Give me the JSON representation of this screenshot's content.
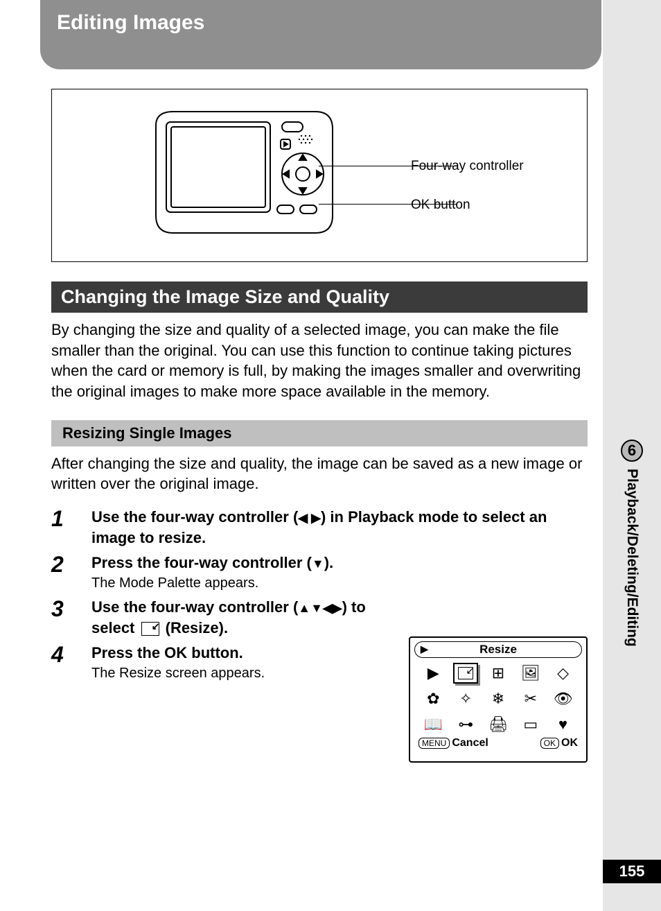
{
  "colors": {
    "page_bg": "#ffffff",
    "outer_bg": "#e6e6e6",
    "title_tab_bg": "#8f8f8f",
    "title_tab_fg": "#ffffff",
    "section_bar_bg": "#3b3b3b",
    "section_bar_fg": "#ffffff",
    "sub_bar_bg": "#bfbfbf",
    "pagenum_bg": "#000000",
    "pagenum_fg": "#ffffff"
  },
  "fonts": {
    "family": "Arial, Helvetica, sans-serif",
    "title_size_pt": 22,
    "section_size_pt": 20,
    "body_size_pt": 16,
    "subheader_size_pt": 16,
    "stepnum_size_pt": 24
  },
  "title": "Editing Images",
  "diagram": {
    "callout1": "Four-way controller",
    "callout2": "OK button"
  },
  "section_title": "Changing the Image Size and Quality",
  "section_body": "By changing the size and quality of a selected image, you can make the file smaller than the original. You can use this function to continue taking pictures when the card or memory is full, by making the images smaller and overwriting the original images to make more space available in the memory.",
  "subheader": "Resizing Single Images",
  "sub_body": "After changing the size and quality, the image can be saved as a new image or written over the original image.",
  "steps": [
    {
      "num": "1",
      "title_pre": "Use the four-way controller (",
      "title_keys": "◀ ▶",
      "title_post": ") in Playback mode to select an image to resize.",
      "sub": ""
    },
    {
      "num": "2",
      "title_pre": "Press the four-way controller (",
      "title_keys": "▼",
      "title_post": ").",
      "sub": "The Mode Palette appears."
    },
    {
      "num": "3",
      "title_pre": "Use the four-way controller (",
      "title_keys": "▲▼◀▶",
      "title_post_pre": ") to select ",
      "title_post_post": " (Resize).",
      "sub": ""
    },
    {
      "num": "4",
      "title_pre": "Press the OK button.",
      "title_keys": "",
      "title_post": "",
      "sub": "The Resize screen appears."
    }
  ],
  "palette": {
    "header": "Resize",
    "footer_cancel_label": "MENU",
    "footer_cancel_text": "Cancel",
    "footer_ok_label": "OK",
    "footer_ok_text": "OK",
    "icons": [
      "▶",
      "⧉",
      "⊞",
      "🖼",
      "◇",
      "✿",
      "✧",
      "❄",
      "✂",
      "👁",
      "📖",
      "⊶",
      "🖨",
      "▭",
      "♥"
    ],
    "selected_index": 1
  },
  "side": {
    "chapter_num": "6",
    "chapter_label": "Playback/Deleting/Editing"
  },
  "page_number": "155"
}
